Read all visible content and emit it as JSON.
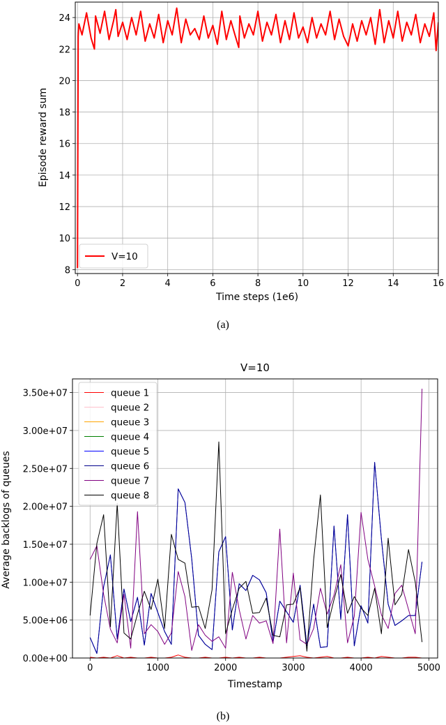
{
  "chart_data": [
    {
      "type": "line",
      "caption": "(a)",
      "title": "",
      "xlabel": "Time steps (1e6)",
      "ylabel": "Episode reward sum",
      "xlim": [
        -0.1,
        16.0
      ],
      "ylim": [
        7.75,
        24.98
      ],
      "grid": true,
      "legend_placement": "lower-left",
      "xticks": [
        0,
        2,
        4,
        6,
        8,
        10,
        12,
        14,
        16
      ],
      "xtick_labels": [
        "0",
        "2",
        "4",
        "6",
        "8",
        "10",
        "12",
        "14",
        "16"
      ],
      "yticks": [
        8,
        10,
        12,
        14,
        16,
        18,
        20,
        22,
        24
      ],
      "ytick_labels": [
        "8",
        "10",
        "12",
        "14",
        "16",
        "18",
        "20",
        "22",
        "24"
      ],
      "series": [
        {
          "name": "V=10",
          "color": "#ff0000",
          "x": [
            0,
            0.03,
            0.06,
            0.2,
            0.4,
            0.6,
            0.75,
            0.8,
            1.0,
            1.2,
            1.4,
            1.6,
            1.7,
            1.8,
            2.0,
            2.2,
            2.4,
            2.6,
            2.8,
            3.0,
            3.2,
            3.4,
            3.6,
            3.8,
            4.0,
            4.2,
            4.4,
            4.6,
            4.8,
            5.0,
            5.2,
            5.4,
            5.6,
            5.8,
            6.0,
            6.2,
            6.4,
            6.6,
            6.8,
            7.0,
            7.15,
            7.2,
            7.4,
            7.6,
            7.8,
            8.0,
            8.2,
            8.4,
            8.6,
            8.8,
            9.0,
            9.2,
            9.4,
            9.6,
            9.8,
            10.0,
            10.2,
            10.4,
            10.6,
            10.8,
            11.0,
            11.2,
            11.4,
            11.6,
            11.8,
            12.0,
            12.2,
            12.4,
            12.6,
            12.8,
            13.0,
            13.2,
            13.4,
            13.6,
            13.8,
            14.0,
            14.2,
            14.4,
            14.6,
            14.8,
            15.0,
            15.2,
            15.4,
            15.6,
            15.8,
            15.9,
            16.0
          ],
          "y": [
            8.1,
            22.8,
            23.6,
            22.9,
            24.3,
            22.7,
            22.0,
            24.1,
            23.0,
            24.4,
            22.6,
            23.8,
            24.5,
            22.8,
            23.7,
            22.6,
            24.0,
            22.9,
            24.4,
            22.5,
            23.6,
            22.7,
            24.2,
            22.4,
            23.8,
            22.9,
            24.6,
            22.4,
            23.9,
            22.9,
            23.3,
            22.6,
            24.1,
            22.7,
            23.5,
            22.3,
            24.4,
            22.6,
            23.8,
            22.8,
            22.1,
            24.1,
            22.7,
            23.6,
            22.9,
            24.4,
            22.5,
            23.7,
            22.9,
            24.2,
            22.4,
            23.8,
            22.6,
            24.3,
            22.7,
            23.4,
            22.4,
            24.0,
            22.7,
            23.6,
            22.9,
            24.4,
            22.6,
            23.9,
            22.8,
            22.2,
            23.6,
            22.5,
            23.8,
            22.9,
            24.0,
            22.3,
            24.5,
            22.4,
            23.8,
            22.7,
            24.4,
            22.5,
            23.7,
            22.9,
            24.2,
            22.4,
            23.6,
            22.8,
            24.3,
            21.9,
            23.7
          ]
        }
      ]
    },
    {
      "type": "line",
      "caption": "(b)",
      "title": "V=10",
      "xlabel": "Timestamp",
      "ylabel": "Average backlogs of queues",
      "xlim": [
        -260,
        5130
      ],
      "ylim": [
        0,
        36800000
      ],
      "grid": true,
      "legend_placement": "upper-left",
      "xticks": [
        0,
        1000,
        2000,
        3000,
        4000,
        5000
      ],
      "xtick_labels": [
        "0",
        "1000",
        "2000",
        "3000",
        "4000",
        "5000"
      ],
      "yticks": [
        0,
        5000000,
        10000000,
        15000000,
        20000000,
        25000000,
        30000000,
        35000000
      ],
      "ytick_labels": [
        "0.00e+00",
        "5.00e+06",
        "1.00e+07",
        "1.50e+07",
        "2.00e+07",
        "2.50e+07",
        "3.00e+07",
        "3.50e+07"
      ],
      "x": [
        0,
        100,
        200,
        300,
        400,
        500,
        600,
        700,
        800,
        900,
        1000,
        1100,
        1200,
        1300,
        1400,
        1500,
        1600,
        1700,
        1800,
        1900,
        2000,
        2100,
        2200,
        2300,
        2400,
        2500,
        2600,
        2700,
        2800,
        2900,
        3000,
        3100,
        3200,
        3300,
        3400,
        3500,
        3600,
        3700,
        3800,
        3900,
        4000,
        4100,
        4200,
        4300,
        4400,
        4500,
        4600,
        4700,
        4800,
        4900
      ],
      "series": [
        {
          "name": "queue 1",
          "color": "#ff0000",
          "values": [
            100000.0,
            0,
            100000.0,
            0,
            300000.0,
            0,
            100000.0,
            0,
            0,
            100000.0,
            0,
            0,
            100000.0,
            400000.0,
            100000.0,
            0,
            0,
            100000.0,
            0,
            0,
            100000.0,
            0,
            100000.0,
            0,
            0,
            100000.0,
            0,
            0,
            0,
            100000.0,
            200000.0,
            300000.0,
            100000.0,
            0,
            100000.0,
            200000.0,
            0,
            0,
            100000.0,
            0,
            0,
            100000.0,
            0,
            200000.0,
            100000.0,
            0,
            0,
            100000.0,
            100000.0,
            0
          ]
        },
        {
          "name": "queue 2",
          "color": "#ffc0cb",
          "values": [
            0,
            0,
            0,
            0,
            0,
            0,
            0,
            0,
            0,
            0,
            0,
            0,
            0,
            0,
            0,
            0,
            0,
            0,
            0,
            0,
            0,
            0,
            0,
            0,
            0,
            0,
            0,
            0,
            0,
            0,
            0,
            0,
            0,
            0,
            0,
            0,
            0,
            0,
            0,
            0,
            0,
            0,
            0,
            0,
            0,
            0,
            0,
            0,
            0,
            0
          ]
        },
        {
          "name": "queue 3",
          "color": "#ffa500",
          "values": [
            0,
            0,
            0,
            0,
            0,
            0,
            0,
            0,
            0,
            0,
            0,
            0,
            0,
            0,
            0,
            0,
            0,
            0,
            0,
            0,
            0,
            0,
            0,
            0,
            0,
            0,
            0,
            0,
            0,
            0,
            0,
            0,
            0,
            0,
            0,
            0,
            0,
            0,
            0,
            0,
            0,
            0,
            0,
            0,
            0,
            0,
            0,
            0,
            0,
            0
          ]
        },
        {
          "name": "queue 4",
          "color": "#008000",
          "values": [
            0,
            0,
            0,
            0,
            0,
            0,
            0,
            0,
            0,
            0,
            0,
            0,
            0,
            0,
            0,
            0,
            0,
            0,
            0,
            0,
            0,
            0,
            0,
            0,
            0,
            0,
            0,
            0,
            0,
            0,
            0,
            0,
            0,
            0,
            0,
            0,
            0,
            0,
            0,
            0,
            0,
            0,
            0,
            0,
            0,
            0,
            0,
            0,
            0,
            0
          ]
        },
        {
          "name": "queue 5",
          "color": "#0000ff",
          "values": [
            2700000.0,
            600000.0,
            9400000.0,
            13600000.0,
            2500000.0,
            9100000.0,
            4800000.0,
            8000000.0,
            1700000.0,
            8500000.0,
            6000000.0,
            3500000.0,
            1800000.0,
            22300000.0,
            20500000.0,
            13100000.0,
            3000000.0,
            1800000.0,
            1100000.0,
            14000000.0,
            16000000.0,
            3700000.0,
            9800000.0,
            8900000.0,
            10900000.0,
            10300000.0,
            8600000.0,
            2100000.0,
            7500000.0,
            6100000.0,
            4700000.0,
            9600000.0,
            1600000.0,
            7100000.0,
            1400000.0,
            1500000.0,
            17400000.0,
            5100000.0,
            18900000.0,
            1600000.0,
            6900000.0,
            4600000.0,
            25800000.0,
            15700000.0,
            7100000.0,
            4300000.0,
            4900000.0,
            5600000.0,
            5600000.0,
            12700000.0
          ]
        },
        {
          "name": "queue 6",
          "color": "#00008b",
          "values": [
            2700000.0,
            600000.0,
            9400000.0,
            13600000.0,
            2500000.0,
            9100000.0,
            4800000.0,
            8000000.0,
            1700000.0,
            8500000.0,
            6000000.0,
            3500000.0,
            1800000.0,
            22300000.0,
            20500000.0,
            13100000.0,
            3000000.0,
            1800000.0,
            1100000.0,
            14000000.0,
            16000000.0,
            3700000.0,
            9800000.0,
            8900000.0,
            10900000.0,
            10300000.0,
            8600000.0,
            2100000.0,
            7500000.0,
            6100000.0,
            4700000.0,
            9600000.0,
            1600000.0,
            7100000.0,
            1400000.0,
            1500000.0,
            17400000.0,
            5100000.0,
            18900000.0,
            1600000.0,
            6900000.0,
            4600000.0,
            25800000.0,
            15700000.0,
            7100000.0,
            4300000.0,
            4900000.0,
            5600000.0,
            5600000.0,
            12700000.0
          ]
        },
        {
          "name": "queue 7",
          "color": "#800080",
          "values": [
            13000000.0,
            14800000.0,
            8400000.0,
            3800000.0,
            2000000.0,
            8400000.0,
            1300000.0,
            19300000.0,
            3200000.0,
            4400000.0,
            3500000.0,
            1800000.0,
            3300000.0,
            11400000.0,
            8100000.0,
            1000000.0,
            4400000.0,
            3000000.0,
            2200000.0,
            2800000.0,
            1300000.0,
            11300000.0,
            6400000.0,
            2500000.0,
            5600000.0,
            4600000.0,
            4900000.0,
            1900000.0,
            17000000.0,
            2000000.0,
            11200000.0,
            2400000.0,
            1800000.0,
            3900000.0,
            9200000.0,
            5800000.0,
            8300000.0,
            12300000.0,
            2000000.0,
            5500000.0,
            19200000.0,
            13000000.0,
            9500000.0,
            5700000.0,
            3900000.0,
            8500000.0,
            9600000.0,
            6400000.0,
            3200000.0,
            35500000.0
          ]
        },
        {
          "name": "queue 8",
          "color": "#000000",
          "values": [
            5600000.0,
            15100000.0,
            18900000.0,
            4100000.0,
            20400000.0,
            3300000.0,
            2500000.0,
            5800000.0,
            8800000.0,
            6400000.0,
            10400000.0,
            3900000.0,
            16300000.0,
            13000000.0,
            12500000.0,
            6700000.0,
            6800000.0,
            3900000.0,
            9000000.0,
            28500000.0,
            3200000.0,
            6400000.0,
            9200000.0,
            10100000.0,
            5900000.0,
            6000000.0,
            7900000.0,
            3000000.0,
            2800000.0,
            7000000.0,
            7100000.0,
            9300000.0,
            900000.0,
            13000000.0,
            21500000.0,
            4000000.0,
            7700000.0,
            11000000.0,
            5900000.0,
            8100000.0,
            6600000.0,
            5600000.0,
            9200000.0,
            3200000.0,
            15800000.0,
            7000000.0,
            8400000.0,
            14300000.0,
            10000000.0,
            2100000.0
          ]
        }
      ]
    }
  ]
}
